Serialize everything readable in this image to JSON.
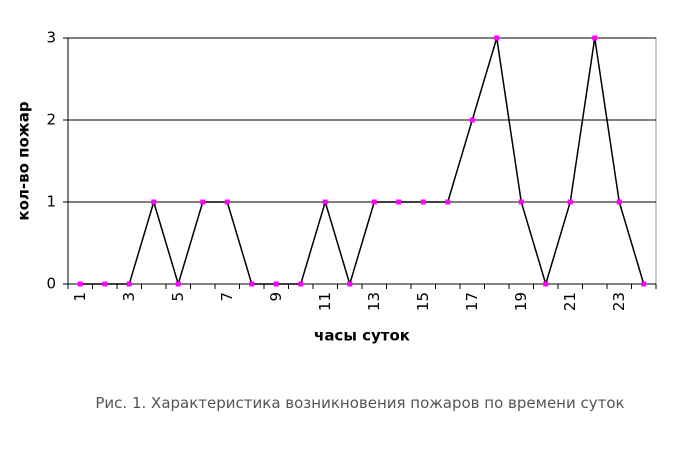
{
  "chart_data": {
    "type": "line",
    "y_label": "кол-во пожар",
    "x_label": "часы суток",
    "caption": "Рис. 1. Характеристика возникновения пожаров по времени суток",
    "categories": [
      "1",
      null,
      "3",
      null,
      "5",
      null,
      "7",
      null,
      "9",
      null,
      "11",
      null,
      "13",
      null,
      "15",
      null,
      "17",
      null,
      "19",
      null,
      "21",
      null,
      "23",
      null
    ],
    "values": [
      0,
      0,
      0,
      1,
      0,
      1,
      1,
      0,
      0,
      0,
      1,
      0,
      1,
      1,
      1,
      1,
      2,
      3,
      1,
      0,
      1,
      3,
      1,
      0
    ],
    "color": "#000000",
    "marker_color": "#ff00ff",
    "ylim": [
      0,
      3
    ],
    "yticks": [
      0,
      1,
      2,
      3
    ],
    "grid": true
  }
}
